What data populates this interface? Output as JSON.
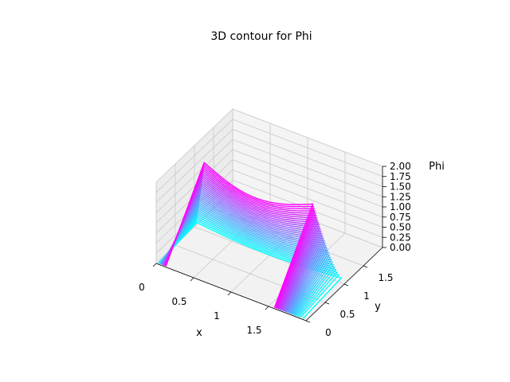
{
  "chart_data": {
    "type": "3d-contour",
    "title": "3D contour for Phi",
    "xlabel": "x",
    "ylabel": "y",
    "zlabel": "Phi",
    "xlim": [
      0,
      2
    ],
    "ylim": [
      0,
      2
    ],
    "zlim": [
      0,
      2
    ],
    "x_ticks": [
      0,
      0.5,
      1,
      1.5
    ],
    "x_tick_labels": [
      "0",
      "0.5",
      "1",
      "1.5"
    ],
    "y_ticks": [
      0,
      0.5,
      1,
      1.5
    ],
    "y_tick_labels": [
      "0",
      "0.5",
      "1",
      "1.5"
    ],
    "z_ticks": [
      0,
      0.25,
      0.5,
      0.75,
      1.0,
      1.25,
      1.5,
      1.75,
      2.0
    ],
    "z_tick_labels": [
      "0.00",
      "0.25",
      "0.50",
      "0.75",
      "1.00",
      "1.25",
      "1.50",
      "1.75",
      "2.00"
    ],
    "colormap": "cool",
    "colormap_colors": [
      "#00ffff",
      "#ff00ff"
    ],
    "grid": true,
    "pane_color": "#f2f2f2",
    "contour_levels": [
      0.1,
      0.15,
      0.2,
      0.25,
      0.3,
      0.35,
      0.4,
      0.45,
      0.5,
      0.55,
      0.6,
      0.65,
      0.7,
      0.75,
      0.8,
      0.85,
      0.9,
      0.95,
      1.0,
      1.05,
      1.1,
      1.15,
      1.2,
      1.25,
      1.3,
      1.35,
      1.4,
      1.45,
      1.5,
      1.55,
      1.6,
      1.65
    ]
  }
}
